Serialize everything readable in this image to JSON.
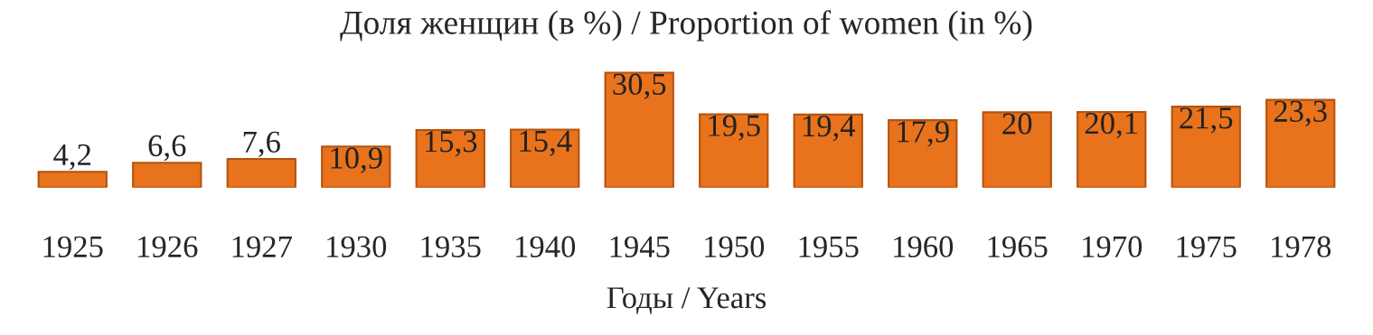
{
  "chart_data": {
    "type": "bar",
    "title": "Доля женщин (в %) / Proportion of women (in %)",
    "xlabel": "Годы / Years",
    "categories": [
      "1925",
      "1926",
      "1927",
      "1930",
      "1935",
      "1940",
      "1945",
      "1950",
      "1955",
      "1960",
      "1965",
      "1970",
      "1975",
      "1978"
    ],
    "values": [
      4.2,
      6.6,
      7.6,
      10.9,
      15.3,
      15.4,
      30.5,
      19.5,
      19.4,
      17.9,
      20,
      20.1,
      21.5,
      23.3
    ],
    "value_labels": [
      "4,2",
      "6,6",
      "7,6",
      "10,9",
      "15,3",
      "15,4",
      "30,5",
      "19,5",
      "19,4",
      "17,9",
      "20",
      "20,1",
      "21,5",
      "23,3"
    ],
    "color": "#e8731c",
    "grid": false,
    "legend": false
  }
}
